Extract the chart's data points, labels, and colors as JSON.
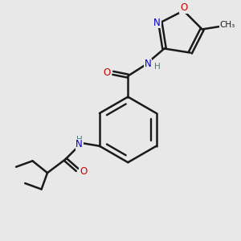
{
  "background_color": "#e8e8e8",
  "bond_color": "#1a1a1a",
  "bond_width": 1.8,
  "atom_colors": {
    "N": "#0000cc",
    "O": "#cc0000",
    "H": "#4a7a7a",
    "C": "#1a1a1a"
  },
  "font_size_atom": 8.5,
  "font_size_h": 7.5,
  "font_size_methyl": 7.5
}
